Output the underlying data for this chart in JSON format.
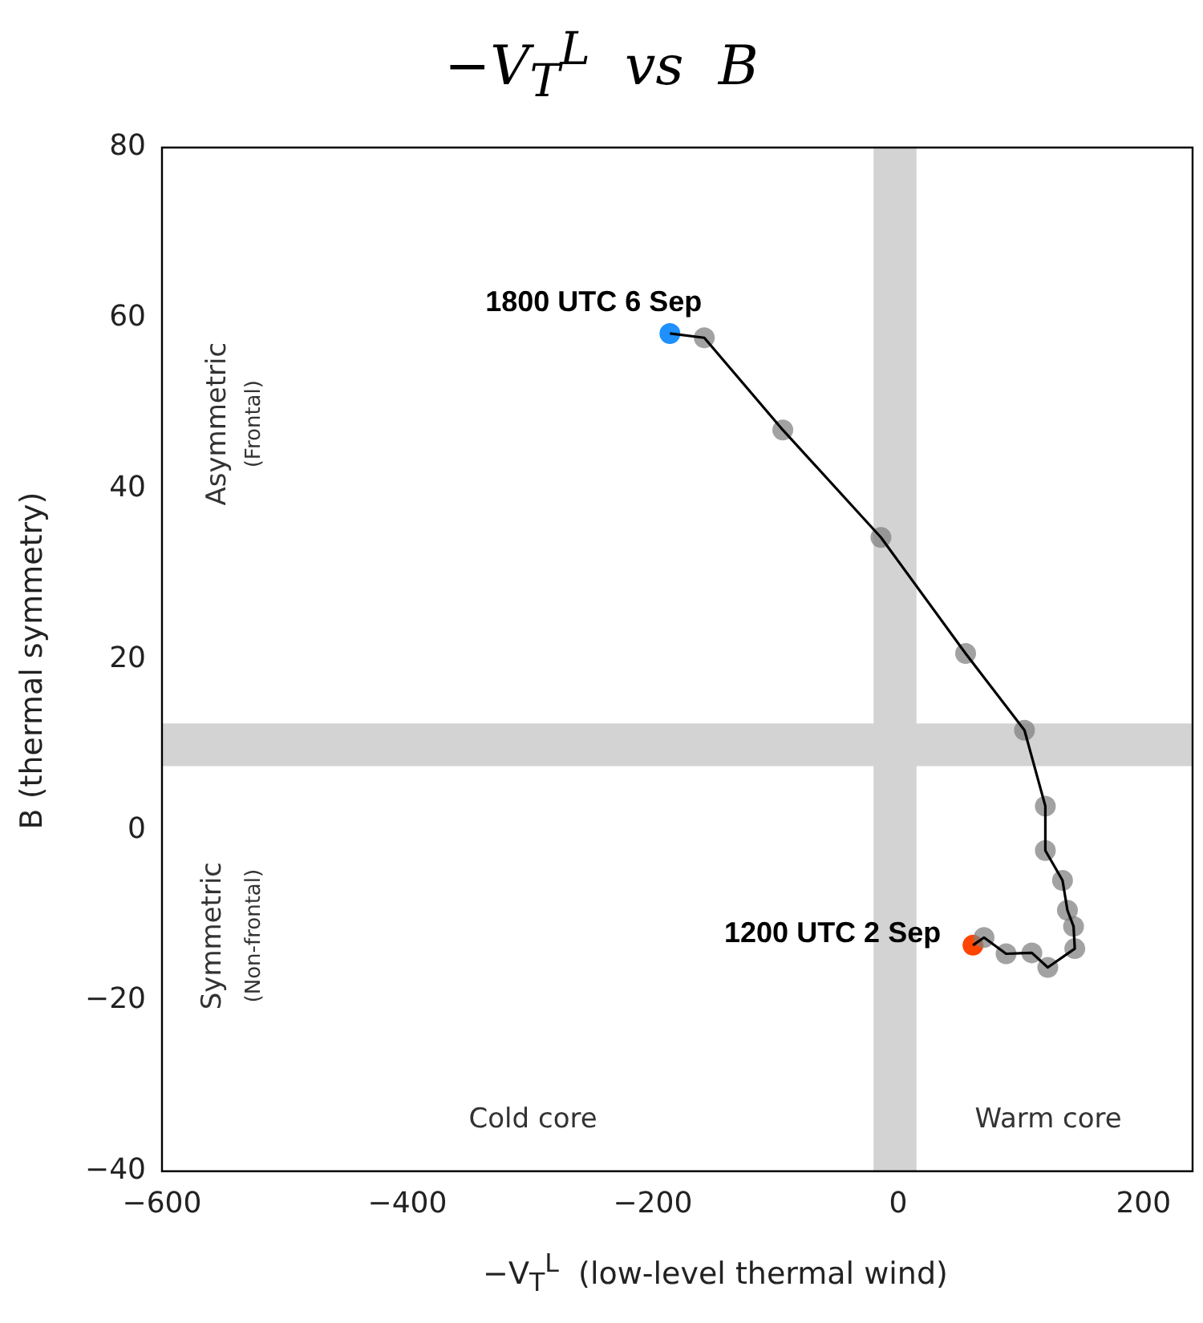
{
  "chart_data": {
    "type": "line",
    "title": "−V$_{T}$$^{L}$  vs  B",
    "xlabel": "−V$_{T}$$^{L}$  (low-level thermal wind)",
    "ylabel": "B (thermal symmetry)",
    "series": [
      {
        "color": "#000000",
        "marker": "circle",
        "colors": [
          "#ff4500",
          "#808080",
          "#808080",
          "#808080",
          "#808080",
          "#808080",
          "#808080",
          "#808080",
          "#808080",
          "#808080",
          "#808080",
          "#808080",
          "#808080",
          "#808080",
          "#808080",
          "#808080",
          "#1e90ff"
        ],
        "x": [
          61,
          70,
          88,
          109,
          122,
          144,
          143,
          138,
          134,
          120,
          120,
          103,
          55,
          -14,
          -94,
          -158,
          -186
        ],
        "values": [
          -13.5,
          -12.6,
          -14.5,
          -14.4,
          -16.1,
          -13.9,
          -11.3,
          -9.4,
          -5.9,
          -2.4,
          2.8,
          11.7,
          20.7,
          34.3,
          46.9,
          57.7,
          58.2
        ]
      }
    ],
    "xlim": [
      -600,
      240
    ],
    "xticks": [
      {
        "value": -600,
        "label": "−600"
      },
      {
        "value": -400,
        "label": "−400"
      },
      {
        "value": -200,
        "label": "−200"
      },
      0,
      200
    ],
    "ylim": [
      -40,
      80
    ],
    "yticks": [
      {
        "value": -40,
        "label": "−40"
      },
      {
        "value": -20,
        "label": "−20"
      },
      0,
      20,
      40,
      60,
      80
    ],
    "grid": false,
    "legend": false,
    "bands": [
      {
        "axis": "x",
        "from": -20,
        "to": 15,
        "color": "#d3d3d3"
      },
      {
        "axis": "y",
        "from": 7.5,
        "to": 12.5,
        "color": "#d3d3d3"
      }
    ],
    "annotations": [
      {
        "text": "1800 UTC 6 Sep",
        "x": -186,
        "y": 58.2
      },
      {
        "text": "1200 UTC 2 Sep",
        "x": 61,
        "y": -13.5
      },
      "Asymmetric",
      "(Frontal)",
      "Symmetric",
      "(Non-frontal)",
      "Cold core",
      "Warm core"
    ]
  }
}
